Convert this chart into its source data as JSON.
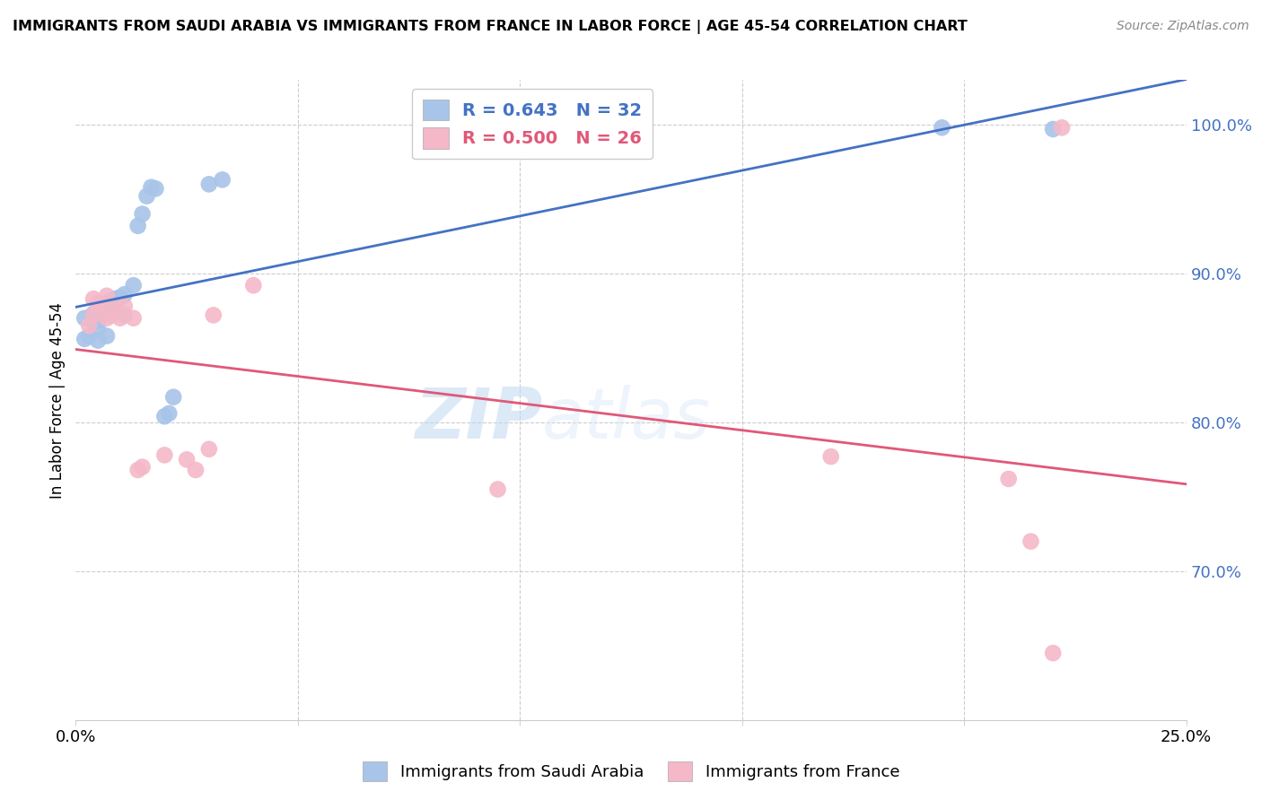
{
  "title": "IMMIGRANTS FROM SAUDI ARABIA VS IMMIGRANTS FROM FRANCE IN LABOR FORCE | AGE 45-54 CORRELATION CHART",
  "source": "Source: ZipAtlas.com",
  "ylabel": "In Labor Force | Age 45-54",
  "xlim": [
    0.0,
    0.25
  ],
  "ylim": [
    0.6,
    1.03
  ],
  "legend_blue_label": "R = 0.643   N = 32",
  "legend_pink_label": "R = 0.500   N = 26",
  "watermark_zip": "ZIP",
  "watermark_atlas": "atlas",
  "saudi_color": "#a8c4e8",
  "saudi_line_color": "#4472c4",
  "france_color": "#f4b8c8",
  "france_line_color": "#e05878",
  "saudi_x": [
    0.002,
    0.002,
    0.003,
    0.004,
    0.004,
    0.005,
    0.005,
    0.005,
    0.006,
    0.006,
    0.007,
    0.007,
    0.008,
    0.008,
    0.009,
    0.009,
    0.01,
    0.011,
    0.011,
    0.013,
    0.014,
    0.015,
    0.016,
    0.017,
    0.018,
    0.02,
    0.021,
    0.022,
    0.03,
    0.033,
    0.195,
    0.22
  ],
  "saudi_y": [
    0.856,
    0.87,
    0.858,
    0.868,
    0.873,
    0.863,
    0.868,
    0.855,
    0.872,
    0.878,
    0.88,
    0.858,
    0.882,
    0.88,
    0.878,
    0.883,
    0.884,
    0.886,
    0.872,
    0.892,
    0.932,
    0.94,
    0.952,
    0.958,
    0.957,
    0.804,
    0.806,
    0.817,
    0.96,
    0.963,
    0.998,
    0.997
  ],
  "france_x": [
    0.003,
    0.004,
    0.004,
    0.005,
    0.006,
    0.007,
    0.007,
    0.008,
    0.009,
    0.01,
    0.011,
    0.013,
    0.014,
    0.015,
    0.02,
    0.025,
    0.027,
    0.03,
    0.031,
    0.04,
    0.095,
    0.17,
    0.21,
    0.215,
    0.22,
    0.222
  ],
  "france_y": [
    0.865,
    0.872,
    0.883,
    0.88,
    0.877,
    0.885,
    0.87,
    0.872,
    0.876,
    0.87,
    0.878,
    0.87,
    0.768,
    0.77,
    0.778,
    0.775,
    0.768,
    0.782,
    0.872,
    0.892,
    0.755,
    0.777,
    0.762,
    0.72,
    0.645,
    0.998
  ],
  "figsize": [
    14.06,
    8.92
  ],
  "dpi": 100
}
